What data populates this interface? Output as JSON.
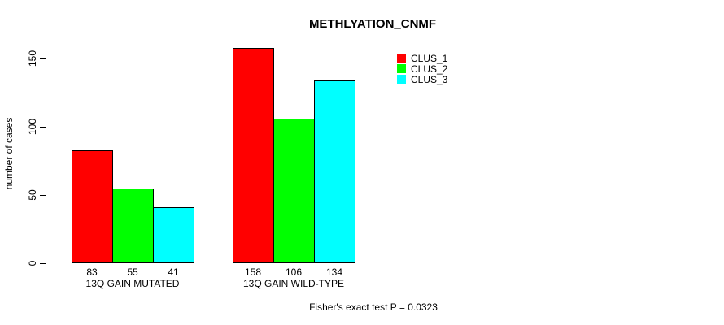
{
  "chart_data": {
    "type": "bar",
    "title": "METHLYATION_CNMF",
    "ylabel": "number of cases",
    "xlabel": "",
    "categories": [
      "13Q GAIN MUTATED",
      "13Q GAIN WILD-TYPE"
    ],
    "series": [
      {
        "name": "CLUS_1",
        "color": "#FF0000",
        "values": [
          83,
          158
        ]
      },
      {
        "name": "CLUS_2",
        "color": "#00FF00",
        "values": [
          55,
          106
        ]
      },
      {
        "name": "CLUS_3",
        "color": "#00FFFF",
        "values": [
          41,
          134
        ]
      }
    ],
    "y_ticks": [
      0,
      50,
      100,
      150
    ],
    "ylim": [
      0,
      165
    ],
    "grid": false,
    "bar_value_labels_shown": true,
    "legend": {
      "position": "top-right",
      "entries": [
        "CLUS_1",
        "CLUS_2",
        "CLUS_3"
      ]
    },
    "footer": "Fisher's exact test P = 0.0323"
  },
  "colors": {
    "background": "#FFFFFF",
    "axis": "#000000",
    "text": "#000000",
    "clus_1": "#FF0000",
    "clus_2": "#00FF00",
    "clus_3": "#00FFFF"
  }
}
